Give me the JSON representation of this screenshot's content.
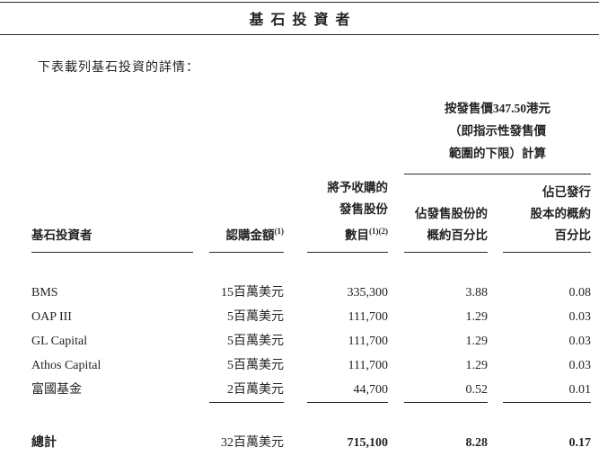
{
  "page": {
    "title": "基石投資者",
    "intro": "下表載列基石投資的詳情："
  },
  "table": {
    "group_header": {
      "line1": "按發售價347.50港元",
      "line2": "（即指示性發售價",
      "line3": "範圍的下限）計算"
    },
    "headers": {
      "investor": "基石投資者",
      "amount": "認購金額",
      "amount_note": "(1)",
      "shares_line1": "將予收購的",
      "shares_line2": "發售股份",
      "shares_line3": "數目",
      "shares_note": "(1)(2)",
      "pct_offer_line1": "佔發售股份的",
      "pct_offer_line2": "概約百分比",
      "pct_issued_line1": "佔已發行",
      "pct_issued_line2": "股本的概約",
      "pct_issued_line3": "百分比"
    },
    "rows": [
      {
        "investor": "BMS",
        "amount": "15百萬美元",
        "shares": "335,300",
        "pct_offer": "3.88",
        "pct_issued": "0.08"
      },
      {
        "investor": "OAP III",
        "amount": "5百萬美元",
        "shares": "111,700",
        "pct_offer": "1.29",
        "pct_issued": "0.03"
      },
      {
        "investor": "GL Capital",
        "amount": "5百萬美元",
        "shares": "111,700",
        "pct_offer": "1.29",
        "pct_issued": "0.03"
      },
      {
        "investor": "Athos Capital",
        "amount": "5百萬美元",
        "shares": "111,700",
        "pct_offer": "1.29",
        "pct_issued": "0.03"
      },
      {
        "investor": "富國基金",
        "amount": "2百萬美元",
        "shares": "44,700",
        "pct_offer": "0.52",
        "pct_issued": "0.01"
      }
    ],
    "total": {
      "label": "總計",
      "amount": "32百萬美元",
      "shares": "715,100",
      "pct_offer": "8.28",
      "pct_issued": "0.17"
    }
  }
}
